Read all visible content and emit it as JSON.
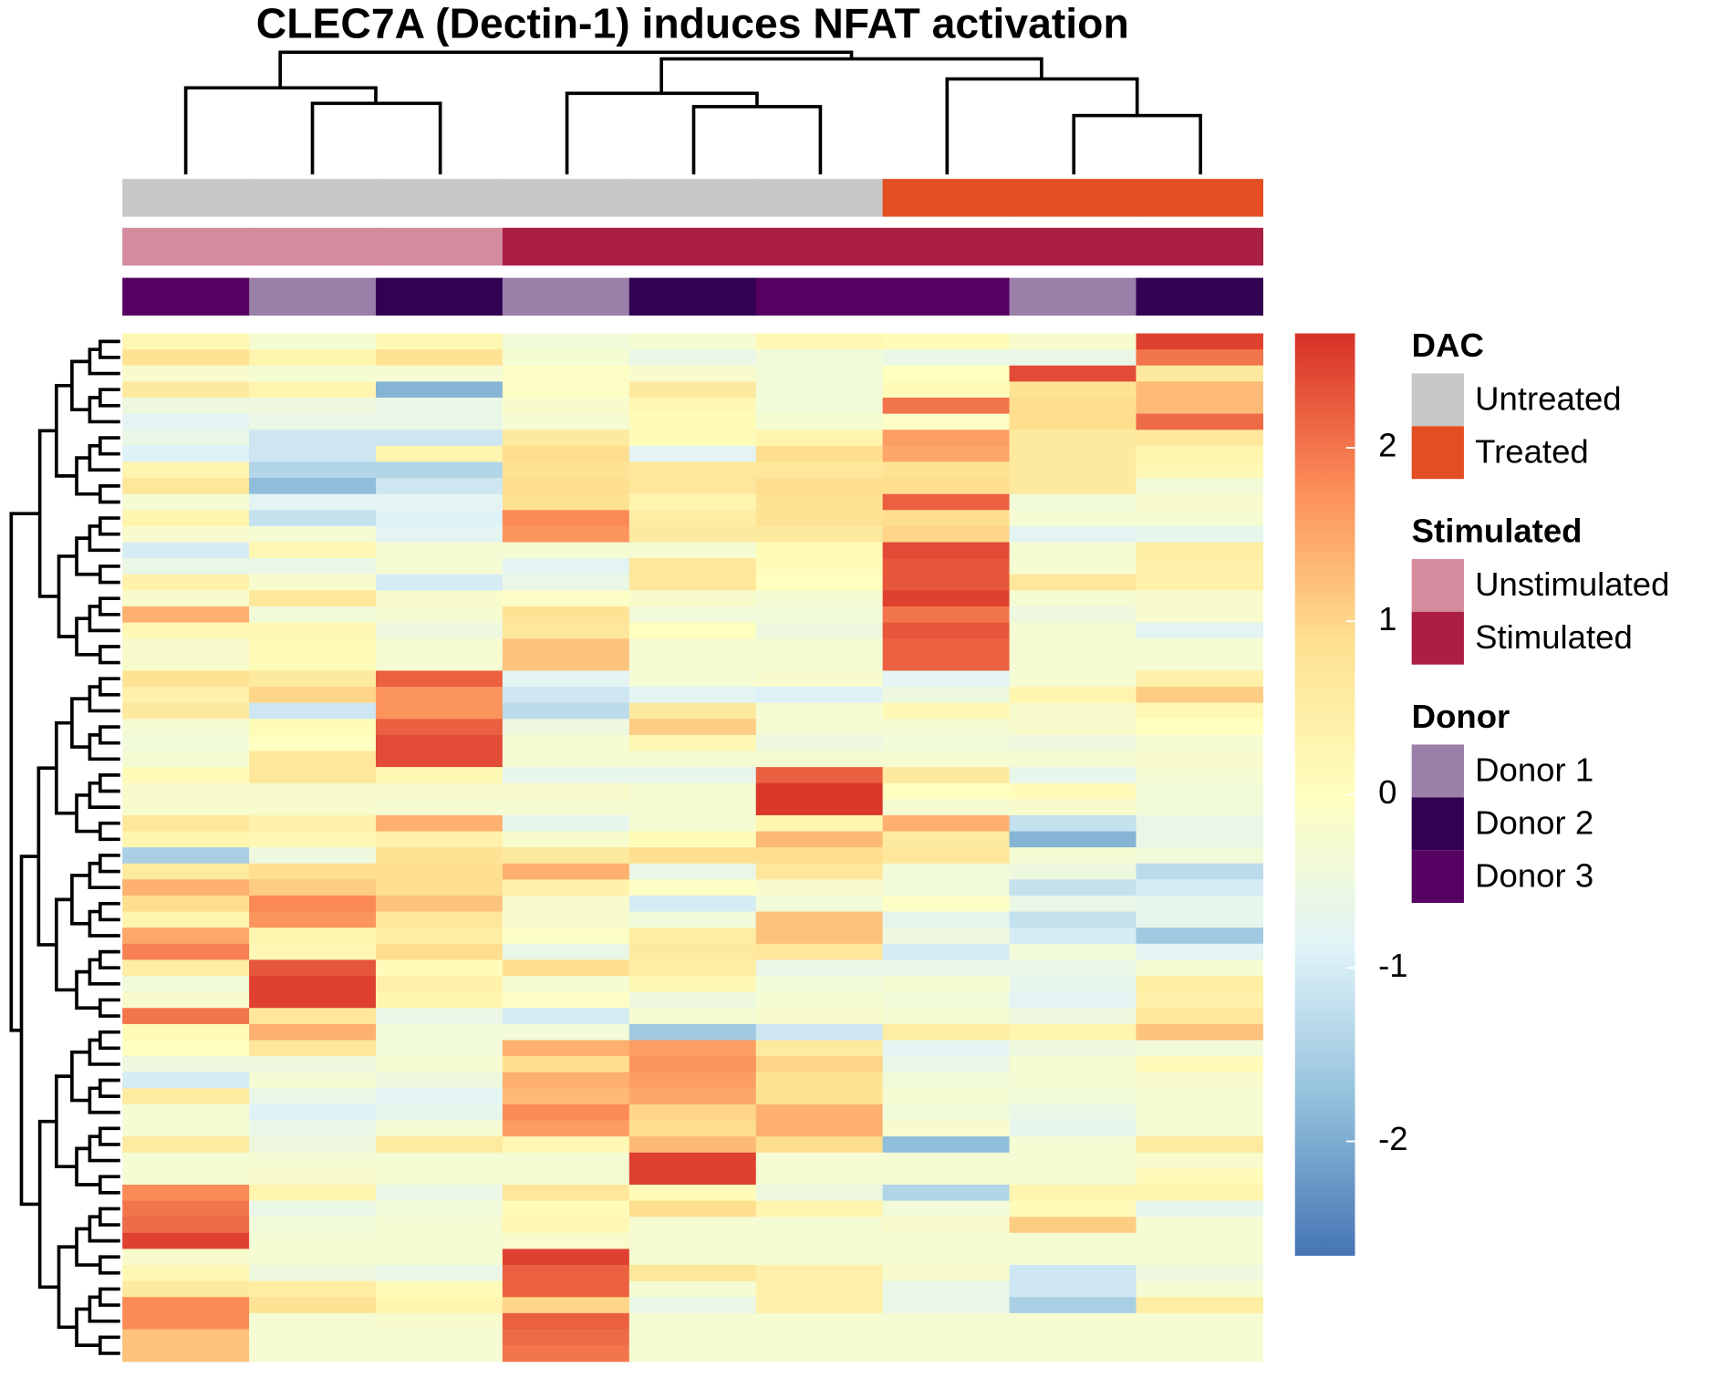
{
  "chart_data": {
    "type": "heatmap",
    "title": "CLEC7A (Dectin-1) induces NFAT activation",
    "zlim": [
      -2.66,
      2.66
    ],
    "zticks": [
      -2,
      -1,
      0,
      1,
      2
    ],
    "colors": [
      "#4575b4",
      "#91bfdb",
      "#e0f3f8",
      "#ffffbf",
      "#fee090",
      "#fc8d59",
      "#d73027"
    ],
    "annotations": [
      {
        "name": "DAC",
        "levels": [
          {
            "name": "Untreated",
            "color": "#c8c8c8"
          },
          {
            "name": "Treated",
            "color": "#e34e22"
          }
        ],
        "values": [
          "Untreated",
          "Untreated",
          "Untreated",
          "Untreated",
          "Untreated",
          "Untreated",
          "Treated",
          "Treated",
          "Treated"
        ]
      },
      {
        "name": "Stimulated",
        "levels": [
          {
            "name": "Unstimulated",
            "color": "#d48b9d"
          },
          {
            "name": "Stimulated",
            "color": "#ab1f45"
          }
        ],
        "values": [
          "Unstimulated",
          "Unstimulated",
          "Unstimulated",
          "Stimulated",
          "Stimulated",
          "Stimulated",
          "Stimulated",
          "Stimulated",
          "Stimulated"
        ]
      },
      {
        "name": "Donor",
        "levels": [
          {
            "name": "Donor 1",
            "color": "#9a7fa9"
          },
          {
            "name": "Donor 2",
            "color": "#310152"
          },
          {
            "name": "Donor 3",
            "color": "#560062"
          }
        ],
        "values": [
          "Donor 3",
          "Donor 1",
          "Donor 2",
          "Donor 1",
          "Donor 2",
          "Donor 3",
          "Donor 3",
          "Donor 1",
          "Donor 2"
        ]
      }
    ],
    "values": [
      [
        0.2,
        -0.3,
        0.2,
        -0.4,
        -0.3,
        0.2,
        0.1,
        -0.2,
        2.5
      ],
      [
        0.8,
        0.3,
        0.8,
        -0.3,
        -0.6,
        -0.4,
        -0.6,
        -0.6,
        2.0
      ],
      [
        -0.2,
        -0.3,
        -0.3,
        -0.1,
        -0.2,
        -0.4,
        0.0,
        2.4,
        0.6
      ],
      [
        0.6,
        0.3,
        -1.9,
        -0.1,
        0.6,
        -0.4,
        0.1,
        0.8,
        1.3
      ],
      [
        -0.5,
        -0.5,
        -0.6,
        -0.2,
        0.2,
        -0.4,
        2.0,
        0.9,
        1.3
      ],
      [
        -0.8,
        -0.6,
        -0.6,
        -0.3,
        0.1,
        -0.3,
        -0.1,
        0.9,
        2.1
      ],
      [
        -0.6,
        -1.1,
        -1.1,
        0.6,
        0.1,
        0.3,
        1.6,
        0.6,
        0.7
      ],
      [
        -0.9,
        -1.1,
        0.3,
        0.9,
        -0.8,
        0.9,
        1.5,
        0.6,
        0.3
      ],
      [
        0.3,
        -1.4,
        -1.4,
        0.8,
        0.7,
        0.7,
        0.8,
        0.6,
        0.2
      ],
      [
        0.7,
        -1.8,
        -1.1,
        0.9,
        0.7,
        0.9,
        0.9,
        0.6,
        -0.4
      ],
      [
        -0.3,
        -0.8,
        -0.8,
        0.8,
        0.3,
        0.8,
        2.2,
        -0.4,
        -0.2
      ],
      [
        0.3,
        -1.2,
        -0.9,
        1.8,
        0.5,
        0.8,
        0.9,
        -0.3,
        -0.3
      ],
      [
        -0.2,
        -0.3,
        -0.8,
        1.7,
        0.6,
        0.6,
        1.0,
        -0.8,
        -0.7
      ],
      [
        -1.0,
        0.2,
        -0.3,
        -0.3,
        -0.3,
        0.1,
        2.4,
        -0.3,
        0.5
      ],
      [
        -0.6,
        -0.6,
        -0.3,
        -0.8,
        0.7,
        0.1,
        2.3,
        -0.3,
        0.4
      ],
      [
        0.4,
        -0.2,
        -1.0,
        -0.6,
        0.7,
        0.0,
        2.3,
        0.7,
        0.4
      ],
      [
        -0.2,
        0.7,
        -0.2,
        -0.1,
        -0.2,
        -0.3,
        2.5,
        -0.3,
        -0.2
      ],
      [
        1.4,
        -0.4,
        -0.3,
        0.8,
        -0.4,
        -0.4,
        2.0,
        -0.5,
        -0.2
      ],
      [
        0.2,
        0.2,
        -0.5,
        0.7,
        0.0,
        -0.5,
        2.3,
        -0.3,
        -0.8
      ],
      [
        -0.2,
        0.1,
        -0.3,
        1.2,
        -0.3,
        -0.3,
        2.2,
        -0.3,
        -0.3
      ],
      [
        -0.2,
        0.1,
        -0.3,
        1.2,
        -0.3,
        -0.3,
        2.2,
        -0.3,
        -0.3
      ],
      [
        0.8,
        0.6,
        2.2,
        -0.8,
        -0.3,
        -0.2,
        -0.8,
        -0.3,
        0.4
      ],
      [
        0.4,
        1.0,
        1.7,
        -1.1,
        -0.8,
        -0.9,
        -0.5,
        0.3,
        1.1
      ],
      [
        0.6,
        -1.1,
        1.7,
        -1.3,
        0.6,
        -0.3,
        0.2,
        -0.2,
        0.2
      ],
      [
        -0.3,
        0.1,
        2.2,
        -0.5,
        1.1,
        -0.3,
        -0.3,
        -0.2,
        0.0
      ],
      [
        -0.4,
        0.0,
        2.4,
        -0.3,
        0.2,
        -0.5,
        -0.4,
        -0.5,
        -0.3
      ],
      [
        -0.3,
        0.7,
        2.4,
        -0.3,
        -0.3,
        -0.3,
        -0.3,
        -0.3,
        -0.2
      ],
      [
        0.1,
        0.7,
        0.2,
        -0.7,
        -0.7,
        2.2,
        0.6,
        -0.7,
        -0.3
      ],
      [
        -0.2,
        -0.2,
        -0.2,
        -0.2,
        -0.3,
        2.6,
        0.0,
        0.1,
        -0.4
      ],
      [
        -0.2,
        -0.2,
        -0.3,
        -0.3,
        -0.3,
        2.6,
        -0.3,
        -0.2,
        -0.4
      ],
      [
        0.7,
        0.4,
        1.4,
        -0.7,
        -0.3,
        0.3,
        1.4,
        -1.2,
        -0.6
      ],
      [
        0.3,
        0.2,
        0.4,
        -0.2,
        0.1,
        1.3,
        0.6,
        -1.9,
        -0.6
      ],
      [
        -1.5,
        -0.5,
        0.8,
        0.6,
        0.9,
        0.9,
        0.7,
        -0.3,
        -0.4
      ],
      [
        0.6,
        0.9,
        0.9,
        1.4,
        -0.6,
        0.7,
        -0.4,
        -0.5,
        -1.3
      ],
      [
        1.4,
        1.1,
        0.9,
        0.4,
        -0.1,
        -0.2,
        -0.4,
        -1.2,
        -1.0
      ],
      [
        0.9,
        1.8,
        1.2,
        -0.2,
        -1.0,
        -0.4,
        -0.1,
        -0.6,
        -0.7
      ],
      [
        0.3,
        1.7,
        0.7,
        -0.2,
        -0.4,
        1.2,
        -0.7,
        -1.2,
        -0.7
      ],
      [
        1.5,
        0.3,
        0.5,
        -0.1,
        0.5,
        1.2,
        -0.5,
        -1.0,
        -1.6
      ],
      [
        1.9,
        0.2,
        0.9,
        -0.6,
        0.6,
        0.7,
        -1.0,
        -0.4,
        -0.8
      ],
      [
        0.5,
        2.3,
        0.1,
        0.9,
        0.5,
        -0.6,
        -0.6,
        -0.6,
        -0.3
      ],
      [
        -0.4,
        2.5,
        0.4,
        -0.3,
        0.2,
        -0.4,
        -0.3,
        -0.7,
        0.5
      ],
      [
        -0.2,
        2.5,
        0.3,
        -0.1,
        -0.5,
        -0.3,
        -0.4,
        -0.8,
        0.4
      ],
      [
        2.0,
        0.7,
        -0.6,
        -1.0,
        -0.3,
        -0.2,
        -0.3,
        -0.5,
        0.7
      ],
      [
        0.1,
        1.4,
        -0.4,
        -0.4,
        -1.6,
        -1.1,
        0.5,
        0.3,
        1.2
      ],
      [
        0.0,
        0.7,
        -0.4,
        1.4,
        1.6,
        0.6,
        -0.8,
        -0.5,
        -0.4
      ],
      [
        -0.5,
        -0.5,
        -0.3,
        0.9,
        1.7,
        1.0,
        -0.6,
        -0.3,
        0.1
      ],
      [
        -1.0,
        -0.3,
        -0.5,
        1.4,
        1.6,
        0.8,
        -0.4,
        -0.3,
        -0.2
      ],
      [
        0.6,
        -0.6,
        -0.8,
        1.3,
        1.5,
        0.8,
        -0.3,
        -0.4,
        -0.3
      ],
      [
        -0.3,
        -0.9,
        -0.7,
        1.8,
        1.0,
        1.4,
        -0.4,
        -0.6,
        -0.3
      ],
      [
        -0.3,
        -0.6,
        -0.3,
        1.6,
        0.9,
        1.4,
        -0.2,
        -0.7,
        -0.3
      ],
      [
        0.6,
        -0.5,
        0.6,
        0.2,
        1.3,
        0.9,
        -1.8,
        -0.3,
        0.6
      ],
      [
        -0.3,
        -0.3,
        -0.3,
        -0.3,
        2.5,
        -0.3,
        -0.3,
        -0.3,
        -0.2
      ],
      [
        -0.3,
        -0.2,
        -0.3,
        -0.3,
        2.5,
        -0.3,
        -0.3,
        -0.3,
        0.1
      ],
      [
        1.8,
        0.3,
        -0.6,
        0.7,
        0.1,
        -0.5,
        -1.4,
        0.3,
        0.3
      ],
      [
        2.0,
        -0.6,
        -0.4,
        0.1,
        0.9,
        0.3,
        -0.4,
        0.1,
        -0.7
      ],
      [
        2.1,
        -0.4,
        -0.3,
        0.2,
        -0.3,
        -0.3,
        -0.2,
        1.1,
        -0.3
      ],
      [
        2.5,
        -0.3,
        -0.3,
        -0.2,
        -0.3,
        -0.3,
        -0.3,
        -0.3,
        -0.3
      ],
      [
        -0.2,
        -0.3,
        -0.3,
        2.5,
        -0.3,
        -0.3,
        -0.3,
        -0.3,
        -0.3
      ],
      [
        0.2,
        -0.5,
        -0.6,
        2.2,
        0.7,
        0.4,
        -0.2,
        -1.1,
        -0.5
      ],
      [
        0.6,
        0.5,
        0.1,
        2.2,
        -0.3,
        0.4,
        -0.6,
        -1.1,
        -0.3
      ],
      [
        1.8,
        0.8,
        0.3,
        1.0,
        -0.6,
        0.4,
        -0.6,
        -1.5,
        0.5
      ],
      [
        1.8,
        -0.3,
        -0.2,
        2.2,
        -0.3,
        -0.3,
        -0.3,
        -0.3,
        -0.3
      ],
      [
        1.2,
        -0.3,
        -0.3,
        2.1,
        -0.3,
        -0.3,
        -0.3,
        -0.3,
        -0.3
      ],
      [
        1.2,
        -0.3,
        -0.3,
        2.0,
        -0.3,
        -0.3,
        -0.3,
        -0.3,
        -0.3
      ]
    ]
  }
}
